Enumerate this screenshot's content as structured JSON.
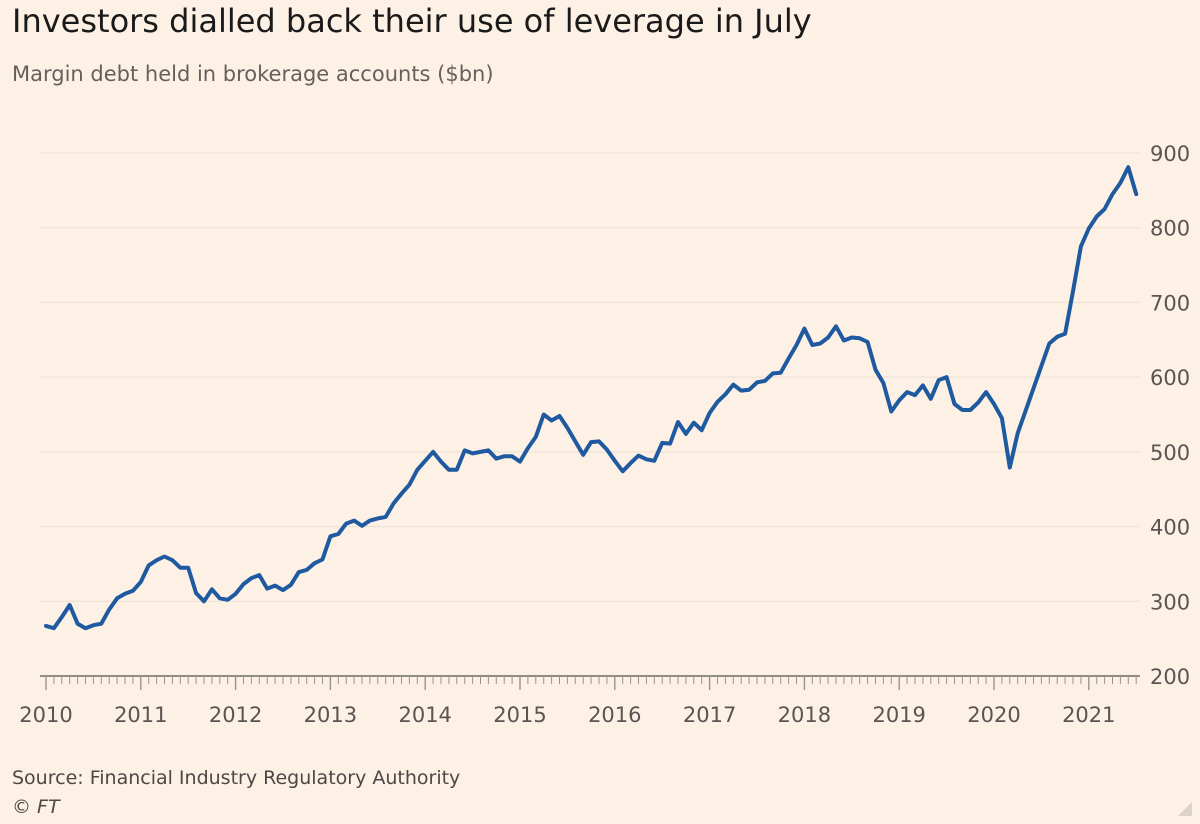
{
  "title": "Investors dialled back their use of leverage in July",
  "subtitle": "Margin debt held in brokerage accounts ($bn)",
  "source": "Source: Financial Industry Regulatory Authority",
  "copyright": "© FT",
  "colors": {
    "background": "#fdf1e6",
    "line": "#1f5aa0",
    "grid": "#eee2d6",
    "axis": "#6f6a66"
  },
  "chart_data": {
    "type": "line",
    "title": "Investors dialled back their use of leverage in July",
    "subtitle": "Margin debt held in brokerage accounts ($bn)",
    "xlabel": "",
    "ylabel": "",
    "y_axis_position": "right",
    "ylim": [
      200,
      900
    ],
    "yticks": [
      200,
      300,
      400,
      500,
      600,
      700,
      800,
      900
    ],
    "ytick_labels": [
      "200",
      "300",
      "400",
      "500",
      "600",
      "700",
      "800",
      "900"
    ],
    "xlim": [
      "2010-01",
      "2021-07"
    ],
    "xticks": [
      2010,
      2011,
      2012,
      2013,
      2014,
      2015,
      2016,
      2017,
      2018,
      2019,
      2020,
      2021
    ],
    "xtick_labels": [
      "2010",
      "2011",
      "2012",
      "2013",
      "2014",
      "2015",
      "2016",
      "2017",
      "2018",
      "2019",
      "2020",
      "2021"
    ],
    "grid": true,
    "series": [
      {
        "x": [
          "2010-01",
          "2010-02",
          "2010-03",
          "2010-04",
          "2010-05",
          "2010-06",
          "2010-07",
          "2010-08",
          "2010-09",
          "2010-10",
          "2010-11",
          "2010-12",
          "2011-01",
          "2011-02",
          "2011-03",
          "2011-04",
          "2011-05",
          "2011-06",
          "2011-07",
          "2011-08",
          "2011-09",
          "2011-10",
          "2011-11",
          "2011-12",
          "2012-01",
          "2012-02",
          "2012-03",
          "2012-04",
          "2012-05",
          "2012-06",
          "2012-07",
          "2012-08",
          "2012-09",
          "2012-10",
          "2012-11",
          "2012-12",
          "2013-01",
          "2013-02",
          "2013-03",
          "2013-04",
          "2013-05",
          "2013-06",
          "2013-07",
          "2013-08",
          "2013-09",
          "2013-10",
          "2013-11",
          "2013-12",
          "2014-01",
          "2014-02",
          "2014-03",
          "2014-04",
          "2014-05",
          "2014-06",
          "2014-07",
          "2014-08",
          "2014-09",
          "2014-10",
          "2014-11",
          "2014-12",
          "2015-01",
          "2015-02",
          "2015-03",
          "2015-04",
          "2015-05",
          "2015-06",
          "2015-07",
          "2015-08",
          "2015-09",
          "2015-10",
          "2015-11",
          "2015-12",
          "2016-01",
          "2016-02",
          "2016-03",
          "2016-04",
          "2016-05",
          "2016-06",
          "2016-07",
          "2016-08",
          "2016-09",
          "2016-10",
          "2016-11",
          "2016-12",
          "2017-01",
          "2017-02",
          "2017-03",
          "2017-04",
          "2017-05",
          "2017-06",
          "2017-07",
          "2017-08",
          "2017-09",
          "2017-10",
          "2017-11",
          "2017-12",
          "2018-01",
          "2018-02",
          "2018-03",
          "2018-04",
          "2018-05",
          "2018-06",
          "2018-07",
          "2018-08",
          "2018-09",
          "2018-10",
          "2018-11",
          "2018-12",
          "2019-01",
          "2019-02",
          "2019-03",
          "2019-04",
          "2019-05",
          "2019-06",
          "2019-07",
          "2019-08",
          "2019-09",
          "2019-10",
          "2019-11",
          "2019-12",
          "2020-01",
          "2020-02",
          "2020-03",
          "2020-04",
          "2020-05",
          "2020-06",
          "2020-07",
          "2020-08",
          "2020-09",
          "2020-10",
          "2020-11",
          "2020-12",
          "2021-01",
          "2021-02",
          "2021-03",
          "2021-04",
          "2021-05",
          "2021-06",
          "2021-07"
        ],
        "values": [
          267,
          264,
          279,
          295,
          270,
          264,
          268,
          270,
          289,
          304,
          310,
          314,
          326,
          348,
          355,
          360,
          355,
          345,
          345,
          311,
          300,
          316,
          304,
          302,
          310,
          323,
          331,
          335,
          317,
          321,
          315,
          322,
          339,
          342,
          351,
          356,
          387,
          390,
          404,
          408,
          401,
          408,
          411,
          413,
          431,
          444,
          456,
          476,
          488,
          500,
          487,
          476,
          476,
          502,
          498,
          500,
          502,
          491,
          494,
          494,
          487,
          505,
          520,
          550,
          542,
          548,
          532,
          514,
          496,
          513,
          514,
          503,
          488,
          474,
          485,
          495,
          490,
          488,
          512,
          511,
          540,
          524,
          539,
          529,
          552,
          567,
          577,
          590,
          582,
          583,
          593,
          595,
          605,
          606,
          625,
          643,
          665,
          643,
          645,
          653,
          668,
          649,
          653,
          652,
          647,
          610,
          592,
          554,
          569,
          580,
          576,
          589,
          571,
          596,
          600,
          564,
          556,
          556,
          566,
          580,
          564,
          545,
          479,
          525,
          555,
          585,
          615,
          645,
          654,
          658,
          715,
          775,
          799,
          815,
          825,
          845,
          860,
          881,
          845
        ]
      }
    ]
  }
}
